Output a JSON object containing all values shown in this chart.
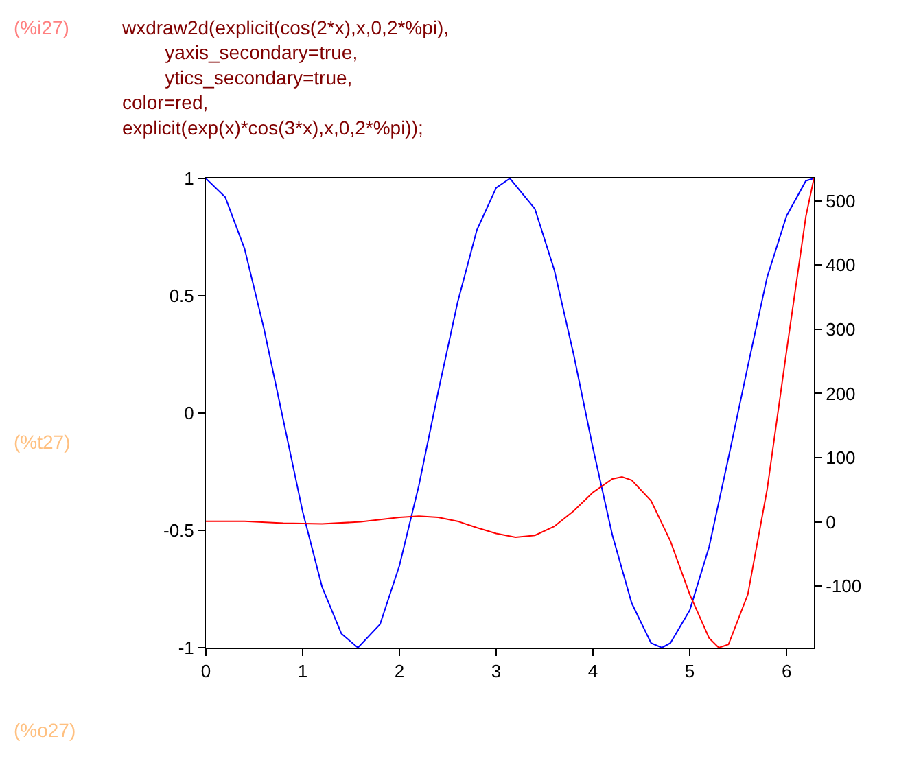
{
  "chart_data": {
    "type": "line",
    "annotations": [
      "(%i27)",
      "wxdraw2d(explicit(cos(2*x),x,0,2*%pi),\n        yaxis_secondary=true,\n        ytics_secondary=true,\ncolor=red,\nexplicit(exp(x)*cos(3*x),x,0,2*%pi));",
      "(%t27)",
      "(%o27)"
    ],
    "series": [
      {
        "color": "#0000ff",
        "x": [
          0,
          0.2,
          0.4,
          0.6,
          0.8,
          1.0,
          1.2,
          1.4,
          1.571,
          1.8,
          2.0,
          2.2,
          2.4,
          2.6,
          2.8,
          3.0,
          3.142,
          3.4,
          3.6,
          3.8,
          4.0,
          4.2,
          4.4,
          4.6,
          4.712,
          4.8,
          5.0,
          5.2,
          5.4,
          5.6,
          5.8,
          6.0,
          6.2,
          6.283
        ],
        "values": [
          1,
          0.92,
          0.7,
          0.36,
          -0.03,
          -0.42,
          -0.74,
          -0.94,
          -1,
          -0.9,
          -0.65,
          -0.31,
          0.09,
          0.47,
          0.78,
          0.96,
          1,
          0.87,
          0.61,
          0.25,
          -0.15,
          -0.52,
          -0.81,
          -0.98,
          -1,
          -0.98,
          -0.84,
          -0.57,
          -0.19,
          0.2,
          0.58,
          0.84,
          0.99,
          1
        ]
      },
      {
        "color": "#ff0000",
        "axis": "y2",
        "x": [
          0,
          0.4,
          0.8,
          1.2,
          1.6,
          2.0,
          2.2,
          2.4,
          2.6,
          2.8,
          3.0,
          3.2,
          3.4,
          3.6,
          3.8,
          4.0,
          4.2,
          4.3,
          4.4,
          4.6,
          4.8,
          5.0,
          5.2,
          5.3,
          5.4,
          5.6,
          5.8,
          6.0,
          6.2,
          6.283
        ],
        "values": [
          1,
          1,
          -2,
          -3,
          0,
          7,
          9,
          7,
          1,
          -9,
          -18,
          -24,
          -21,
          -7,
          17,
          46,
          67,
          70,
          65,
          33,
          -30,
          -113,
          -181,
          -196,
          -191,
          -113,
          51,
          266,
          476,
          535
        ]
      }
    ],
    "xlim": [
      0,
      6.283
    ],
    "xticks": [
      0,
      1,
      2,
      3,
      4,
      5,
      6
    ],
    "ylim": [
      -1,
      1
    ],
    "yticks": [
      -1,
      -0.5,
      0,
      0.5,
      1
    ],
    "y2lim": [
      -196,
      535
    ],
    "y2ticks": [
      -100,
      0,
      100,
      200,
      300,
      400,
      500
    ],
    "marker": "none",
    "line_style": "solid"
  }
}
